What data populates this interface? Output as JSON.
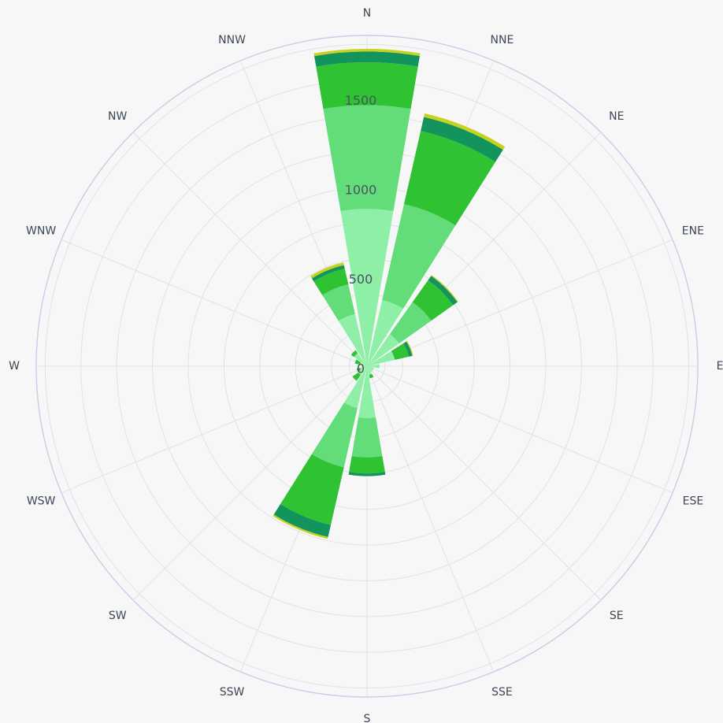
{
  "colors": {
    "background": "#f7f7f8",
    "grid": "#dfe2ea",
    "outer_ring": "#c9cde6"
  },
  "chart_data": {
    "type": "windrose",
    "title": "",
    "directions": [
      "N",
      "NNE",
      "NE",
      "ENE",
      "E",
      "ESE",
      "SE",
      "SSE",
      "S",
      "SSW",
      "SW",
      "WSW",
      "W",
      "WNW",
      "NW",
      "NNW"
    ],
    "radial_ticks": [
      0,
      500,
      1000,
      1500
    ],
    "rmax": 1850,
    "grid": true,
    "legend": "none",
    "series": [
      {
        "color": "#8ef0a6",
        "values": [
          880,
          380,
          220,
          160,
          70,
          40,
          40,
          50,
          290,
          240,
          60,
          40,
          30,
          40,
          90,
          300
        ]
      },
      {
        "color": "#62dd79",
        "values": [
          580,
          550,
          220,
          0,
          0,
          0,
          0,
          0,
          220,
          340,
          0,
          0,
          0,
          0,
          0,
          170
        ]
      },
      {
        "color": "#2fc232",
        "values": [
          240,
          420,
          150,
          80,
          0,
          0,
          0,
          20,
          90,
          330,
          40,
          20,
          0,
          30,
          20,
          90
        ]
      },
      {
        "color": "#13945c",
        "values": [
          60,
          80,
          30,
          20,
          0,
          0,
          0,
          0,
          15,
          70,
          0,
          0,
          0,
          0,
          0,
          20
        ]
      },
      {
        "color": "#c8d21c",
        "values": [
          15,
          20,
          5,
          5,
          0,
          0,
          0,
          0,
          0,
          10,
          0,
          0,
          0,
          0,
          0,
          15
        ]
      }
    ]
  }
}
